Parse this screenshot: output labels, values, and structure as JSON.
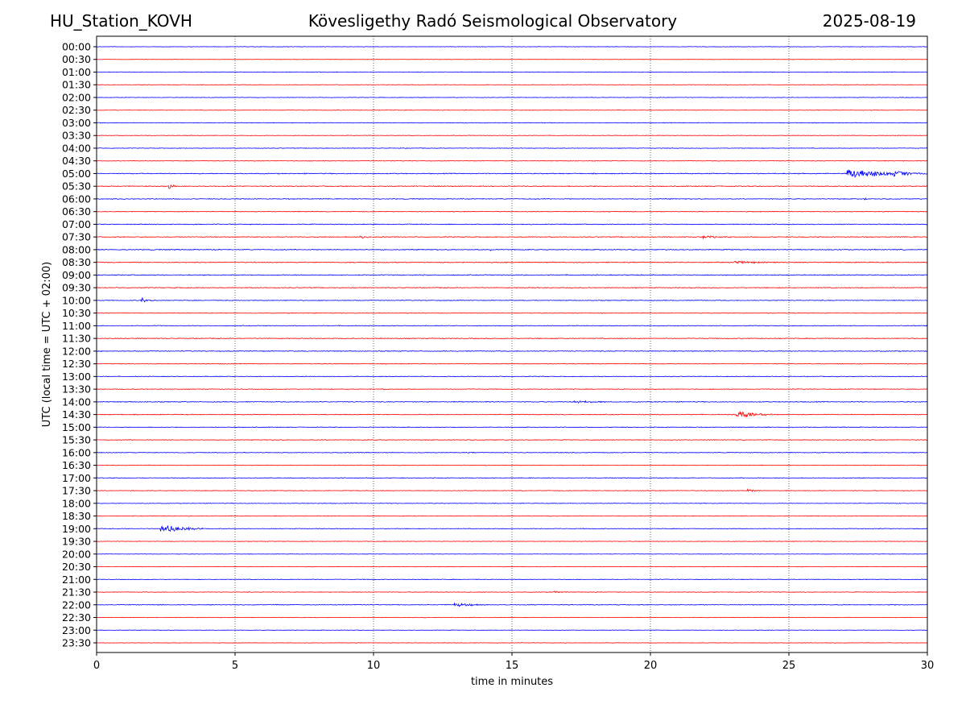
{
  "header": {
    "station": "HU_Station_KOVH",
    "title": "Kövesligethy Radó Seismological Observatory",
    "date": "2025-08-19"
  },
  "chart_data": {
    "type": "line",
    "xlabel": "time in minutes",
    "ylabel": "UTC (local time = UTC + 02:00)",
    "xlim": [
      0,
      30
    ],
    "xticks": [
      0,
      5,
      10,
      15,
      20,
      25,
      30
    ],
    "grid": "vertical-dotted",
    "colors": {
      "even": "#0000ff",
      "odd": "#ff0000"
    },
    "rows": [
      "00:00",
      "00:30",
      "01:00",
      "01:30",
      "02:00",
      "02:30",
      "03:00",
      "03:30",
      "04:00",
      "04:30",
      "05:00",
      "05:30",
      "06:00",
      "06:30",
      "07:00",
      "07:30",
      "08:00",
      "08:30",
      "09:00",
      "09:30",
      "10:00",
      "10:30",
      "11:00",
      "11:30",
      "12:00",
      "12:30",
      "13:00",
      "13:30",
      "14:00",
      "14:30",
      "15:00",
      "15:30",
      "16:00",
      "16:30",
      "17:00",
      "17:30",
      "18:00",
      "18:30",
      "19:00",
      "19:30",
      "20:00",
      "20:30",
      "21:00",
      "21:30",
      "22:00",
      "22:30",
      "23:00",
      "23:30"
    ],
    "noise_level": [
      0.25,
      0.2,
      0.3,
      0.25,
      0.25,
      0.25,
      0.3,
      0.25,
      0.3,
      0.3,
      0.45,
      0.45,
      0.4,
      0.35,
      0.4,
      0.4,
      0.45,
      0.45,
      0.45,
      0.4,
      0.35,
      0.3,
      0.35,
      0.4,
      0.4,
      0.35,
      0.35,
      0.35,
      0.4,
      0.4,
      0.35,
      0.35,
      0.35,
      0.3,
      0.35,
      0.3,
      0.3,
      0.3,
      0.3,
      0.25,
      0.2,
      0.2,
      0.3,
      0.3,
      0.35,
      0.25,
      0.25,
      0.25
    ],
    "events": [
      {
        "row": "05:00",
        "start": 27.1,
        "duration": 2.9,
        "amplitude": 7
      },
      {
        "row": "05:00",
        "start": 28.8,
        "duration": 1.2,
        "amplitude": 5
      },
      {
        "row": "05:30",
        "start": 2.6,
        "duration": 0.3,
        "amplitude": 5
      },
      {
        "row": "06:00",
        "start": 27.7,
        "duration": 0.2,
        "amplitude": 3
      },
      {
        "row": "07:30",
        "start": 9.5,
        "duration": 0.8,
        "amplitude": 2
      },
      {
        "row": "07:30",
        "start": 21.8,
        "duration": 1.4,
        "amplitude": 2
      },
      {
        "row": "08:00",
        "start": 14.2,
        "duration": 0.3,
        "amplitude": 2
      },
      {
        "row": "08:30",
        "start": 23.0,
        "duration": 4.0,
        "amplitude": 1.5
      },
      {
        "row": "10:00",
        "start": 1.6,
        "duration": 0.5,
        "amplitude": 4
      },
      {
        "row": "14:00",
        "start": 17.2,
        "duration": 2.0,
        "amplitude": 2
      },
      {
        "row": "14:30",
        "start": 23.1,
        "duration": 1.5,
        "amplitude": 5
      },
      {
        "row": "17:30",
        "start": 23.5,
        "duration": 0.7,
        "amplitude": 2
      },
      {
        "row": "19:00",
        "start": 2.3,
        "duration": 1.8,
        "amplitude": 5
      },
      {
        "row": "21:30",
        "start": 16.5,
        "duration": 0.6,
        "amplitude": 2
      },
      {
        "row": "22:00",
        "start": 12.9,
        "duration": 1.4,
        "amplitude": 3
      }
    ]
  }
}
